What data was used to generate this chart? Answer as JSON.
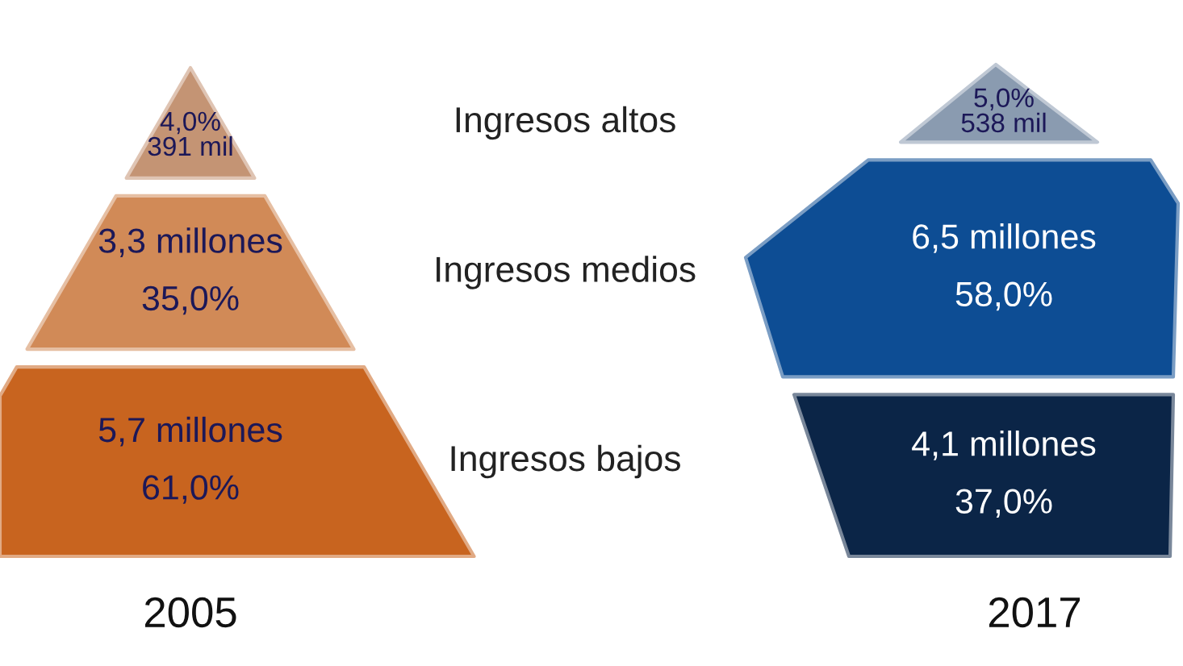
{
  "chart_data": {
    "type": "other",
    "categories": [
      "Ingresos altos",
      "Ingresos medios",
      "Ingresos bajos"
    ],
    "series": [
      {
        "name": "2005",
        "colors": [
          "#c49474",
          "#d18a57",
          "#c8641f"
        ],
        "values": [
          4.0,
          35.0,
          61.0
        ],
        "value_labels": [
          "4,0%\n391 mil",
          "3,3 millones\n35,0%",
          "5,7 millones\n61,0%"
        ]
      },
      {
        "name": "2017",
        "colors": [
          "#8a9bb0",
          "#0d4d94",
          "#0b2547"
        ],
        "values": [
          5.0,
          58.0,
          37.0
        ],
        "value_labels": [
          "5,0%\n538 mil",
          "6,5 millones\n58,0%",
          "4,1 millones\n37,0%"
        ]
      }
    ]
  }
}
